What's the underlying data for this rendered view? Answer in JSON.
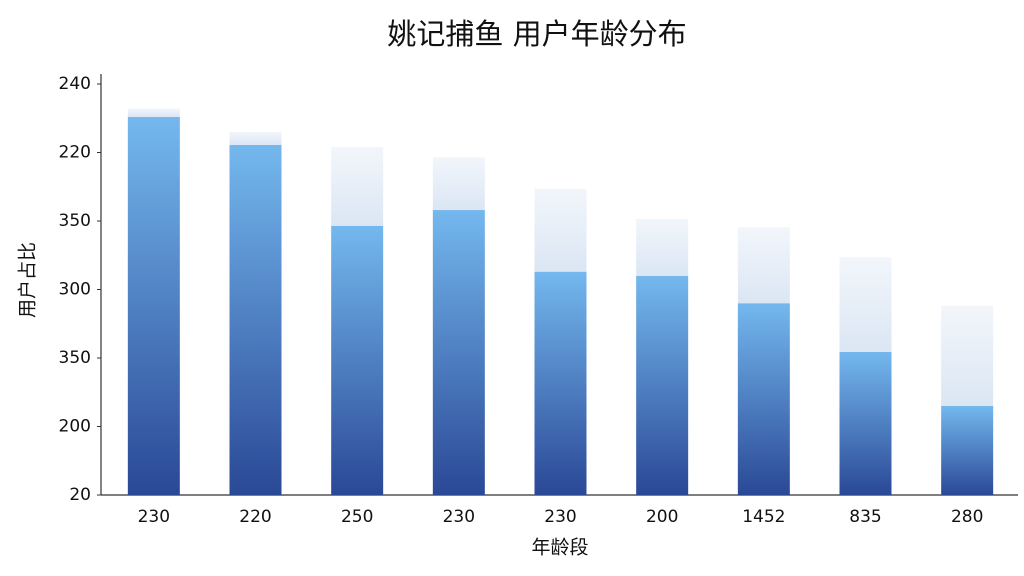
{
  "chart_data": {
    "type": "stacked_bar",
    "title": "姚记捕鱼 用户年龄分布",
    "x_label": "年龄段",
    "y_label": "用户占比",
    "categories": [
      "230",
      "220",
      "250",
      "230",
      "230",
      "200",
      "1452",
      "835",
      "280"
    ],
    "series": [
      {
        "color": "#4a86d0",
        "values": [
          5.52,
          5.11,
          3.93,
          4.16,
          3.26,
          3.2,
          2.8,
          2.09,
          1.3
        ]
      },
      {
        "color": "#dbe6f4",
        "values": [
          0.12,
          0.19,
          1.15,
          0.77,
          1.21,
          0.83,
          1.11,
          1.38,
          1.46
        ]
      }
    ],
    "ylim": [
      0,
      6.15
    ],
    "yticks": [
      {
        "value": 0,
        "label": "20"
      },
      {
        "value": 1,
        "label": "200"
      },
      {
        "value": 2,
        "label": "350"
      },
      {
        "value": 3,
        "label": "300"
      },
      {
        "value": 4,
        "label": "350"
      },
      {
        "value": 5,
        "label": "220"
      },
      {
        "value": 6,
        "label": "240"
      }
    ],
    "grid": false
  }
}
